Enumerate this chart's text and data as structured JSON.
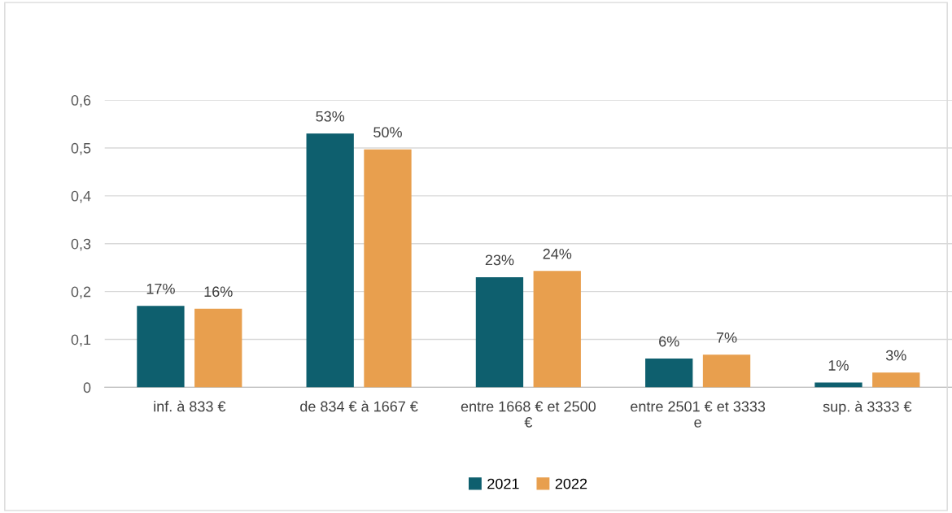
{
  "chart_data": {
    "type": "bar",
    "categories": [
      "inf. à 833 €",
      "de 834 € à 1667 €",
      "entre 1668 € et 2500 €",
      "entre 2501 € et 3333 e",
      "sup. à 3333 €"
    ],
    "series": [
      {
        "name": "2021",
        "color": "#0e5f6e",
        "values": [
          0.17,
          0.53,
          0.23,
          0.06,
          0.01
        ],
        "value_labels": [
          "17%",
          "53%",
          "23%",
          "6%",
          "1%"
        ]
      },
      {
        "name": "2022",
        "color": "#e89f4e",
        "values": [
          0.164,
          0.497,
          0.243,
          0.068,
          0.031
        ],
        "value_labels": [
          "16%",
          "50%",
          "24%",
          "7%",
          "3%"
        ]
      }
    ],
    "ylim": [
      0,
      0.6
    ],
    "yticks": [
      {
        "value": 0,
        "label": "0"
      },
      {
        "value": 0.1,
        "label": "0,1"
      },
      {
        "value": 0.2,
        "label": "0,2"
      },
      {
        "value": 0.3,
        "label": "0,3"
      },
      {
        "value": 0.4,
        "label": "0,4"
      },
      {
        "value": 0.5,
        "label": "0,5"
      },
      {
        "value": 0.6,
        "label": "0,6"
      }
    ],
    "grid": "y",
    "legend": "bottom"
  }
}
